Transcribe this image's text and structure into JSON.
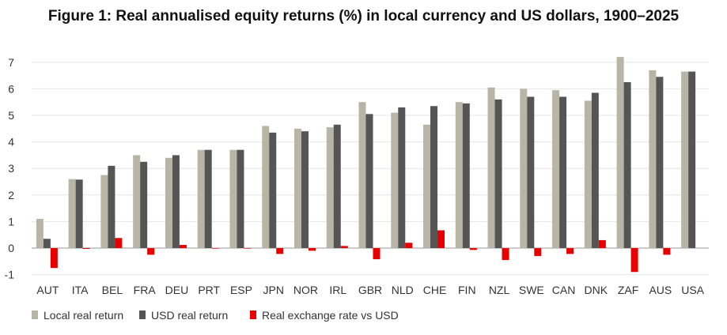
{
  "chart_data": {
    "type": "bar",
    "title": "Figure 1: Real annualised equity returns (%) in local currency and US dollars, 1900–2025",
    "xlabel": "",
    "ylabel": "",
    "ylim": [
      -1,
      7.3
    ],
    "yticks": [
      -1,
      0,
      1,
      2,
      3,
      4,
      5,
      6,
      7
    ],
    "grid": true,
    "legend_position": "bottom-left",
    "categories": [
      "AUT",
      "ITA",
      "BEL",
      "FRA",
      "DEU",
      "PRT",
      "ESP",
      "JPN",
      "NOR",
      "IRL",
      "GBR",
      "NLD",
      "CHE",
      "FIN",
      "NZL",
      "SWE",
      "CAN",
      "DNK",
      "ZAF",
      "AUS",
      "USA"
    ],
    "series": [
      {
        "name": "Local real return",
        "color": "#b8b4a6",
        "values": [
          1.1,
          2.6,
          2.75,
          3.5,
          3.4,
          3.7,
          3.7,
          4.6,
          4.5,
          4.55,
          5.5,
          5.1,
          4.65,
          5.5,
          6.05,
          6.0,
          5.95,
          5.55,
          7.2,
          6.7,
          6.65
        ]
      },
      {
        "name": "USD real return",
        "color": "#555555",
        "values": [
          0.35,
          2.58,
          3.1,
          3.25,
          3.5,
          3.7,
          3.7,
          4.35,
          4.4,
          4.65,
          5.05,
          5.3,
          5.35,
          5.45,
          5.6,
          5.7,
          5.7,
          5.85,
          6.25,
          6.45,
          6.65
        ]
      },
      {
        "name": "Real exchange rate vs USD",
        "color": "#e60000",
        "values": [
          -0.75,
          -0.03,
          0.38,
          -0.25,
          0.12,
          -0.02,
          -0.02,
          -0.22,
          -0.1,
          0.08,
          -0.42,
          0.2,
          0.67,
          -0.07,
          -0.45,
          -0.3,
          -0.22,
          0.3,
          -0.9,
          -0.25,
          0.0
        ]
      }
    ]
  }
}
